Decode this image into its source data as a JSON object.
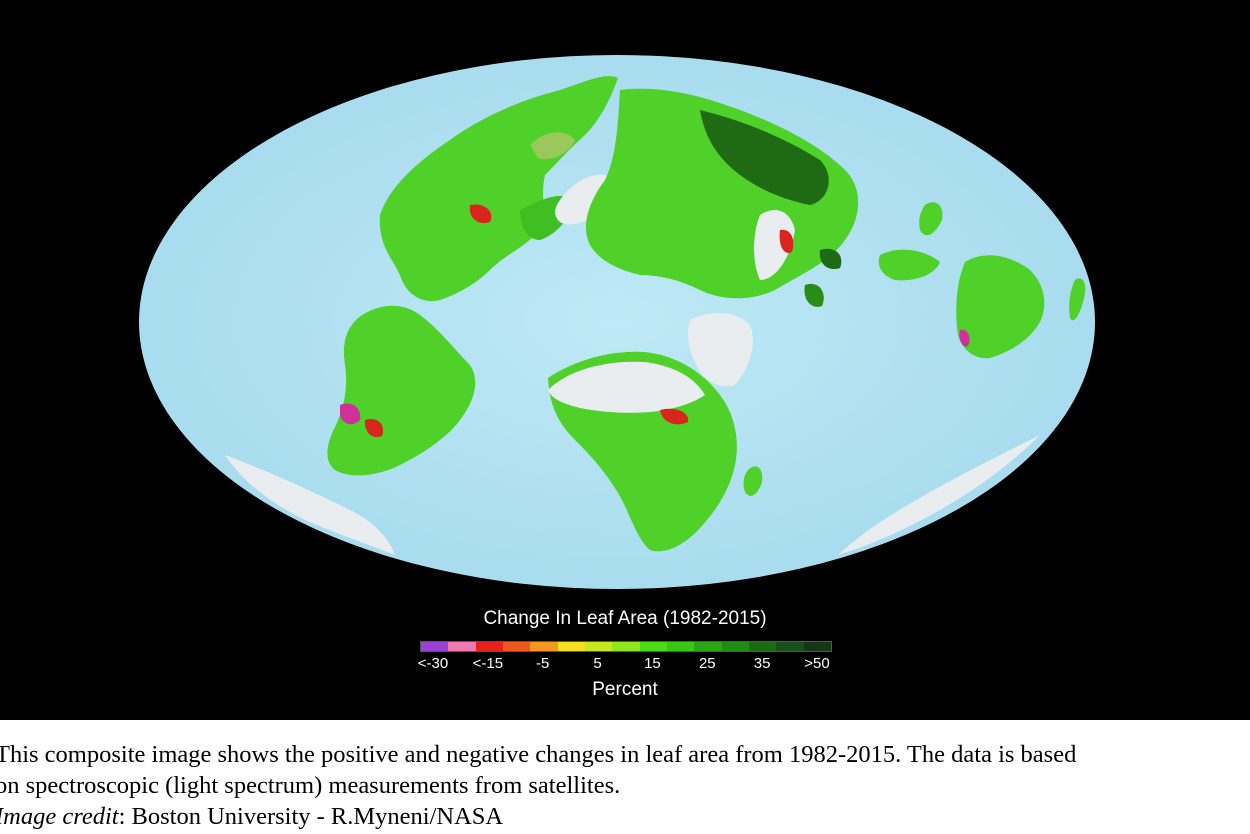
{
  "colors": {
    "background": "#000000",
    "ocean": "#b7e6f3",
    "ocean_edge": "#9fd6e8",
    "land_green": "#4fd12a",
    "land_dark_green": "#1f6b14",
    "land_red": "#d8261c",
    "land_magenta": "#d0309a",
    "ice_white": "#e9edf0",
    "desert_gray": "#cfd3d6"
  },
  "legend": {
    "title": "Change In Leaf Area (1982-2015)",
    "unit": "Percent",
    "swatches": [
      "#9b3fd6",
      "#f07ab0",
      "#e8201c",
      "#f0581c",
      "#f5961e",
      "#f5e01e",
      "#c8e81e",
      "#8ee81e",
      "#4cdc14",
      "#38c814",
      "#2aa814",
      "#1f8c14",
      "#1a6e12",
      "#17501a",
      "#163616"
    ],
    "ticks": [
      "<-30",
      "<-15",
      "-5",
      "5",
      "15",
      "25",
      "35",
      ">50"
    ]
  },
  "caption": {
    "line1": "This composite image shows the positive and negative changes in leaf area from 1982-2015. The data is based",
    "line2": "on spectroscopic (light spectrum) measurements from  satellites.",
    "credit_label": "Image credit",
    "credit_text": ": Boston University - R.Myneni/NASA"
  }
}
